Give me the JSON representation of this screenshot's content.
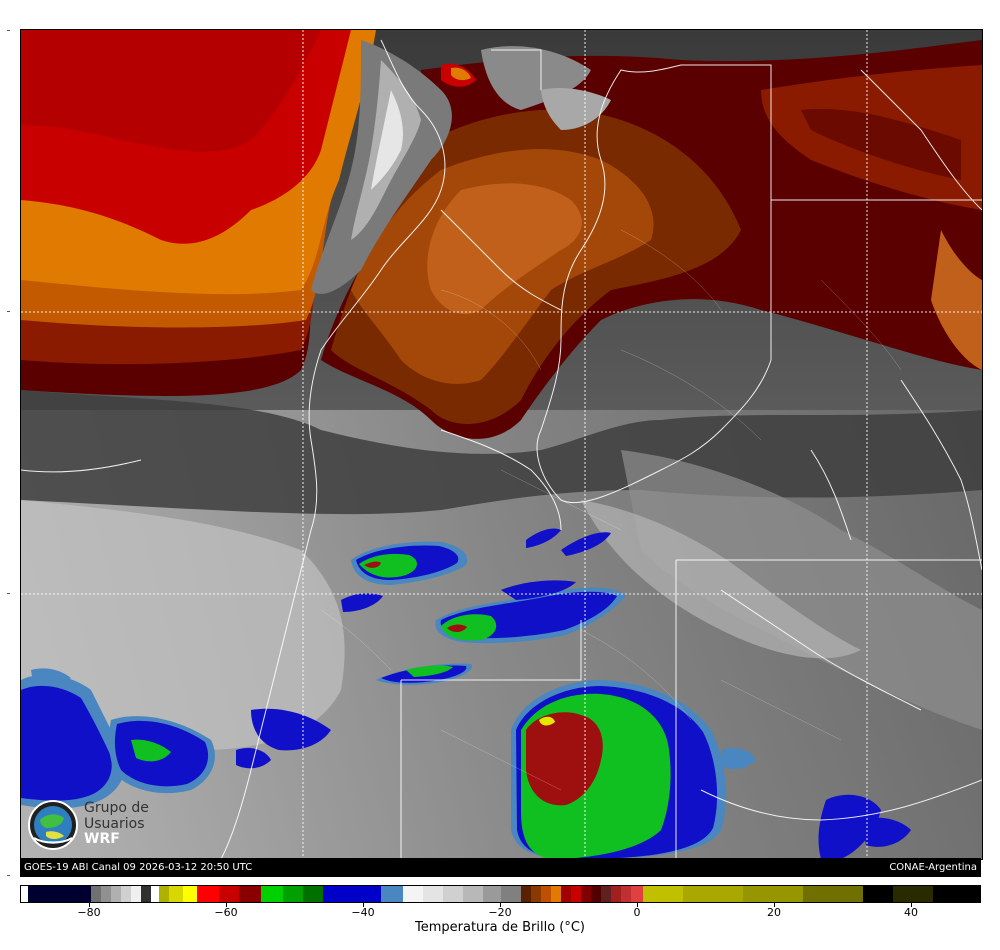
{
  "footer": {
    "left_text": "GOES-19 ABI Canal 09 2026-03-12 20:50 UTC",
    "right_text": "CONAE-Argentina"
  },
  "logo": {
    "line1": "Grupo de",
    "line2": "Usuarios",
    "line3": "WRF"
  },
  "colorbar": {
    "title": "Temperatura de Brillo (°C)",
    "ticks": [
      "−80",
      "−60",
      "−40",
      "−20",
      "0",
      "20",
      "40"
    ],
    "range": [
      -90,
      50
    ]
  },
  "colors": {
    "cold_cloud_red": "#9e1010",
    "convective_green": "#10c020",
    "deep_blue": "#1010c8",
    "light_blue": "#4a86c0",
    "dry_orange": "#e07a00",
    "dry_red": "#c80000",
    "dark_brown": "#5a0000"
  }
}
